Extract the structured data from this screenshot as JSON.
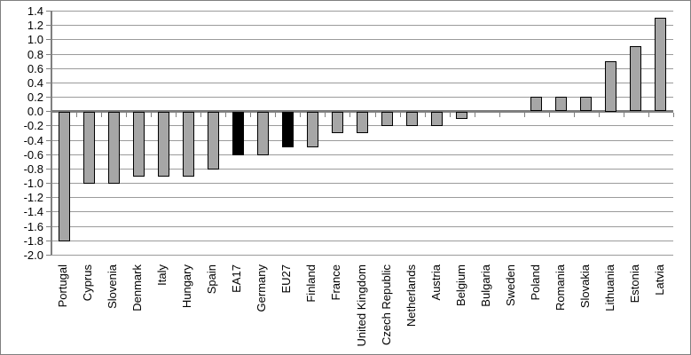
{
  "chart_data": {
    "type": "bar",
    "title": "",
    "xlabel": "",
    "ylabel": "",
    "legend": "none",
    "grid": "horizontal",
    "ylim": [
      -2.0,
      1.4
    ],
    "ytick_step": 0.2,
    "ytick_labels": [
      "1.4",
      "1.2",
      "1.0",
      "0.8",
      "0.6",
      "0.4",
      "0.2",
      "0.0",
      "-0.2",
      "-0.4",
      "-0.6",
      "-0.8",
      "-1.0",
      "-1.2",
      "-1.4",
      "-1.6",
      "-1.8",
      "-2.0"
    ],
    "categories": [
      "Portugal",
      "Cyprus",
      "Slovenia",
      "Denmark",
      "Italy",
      "Hungary",
      "Spain",
      "EA17",
      "Germany",
      "EU27",
      "Finland",
      "France",
      "United Kingdom",
      "Czech Republic",
      "Netherlands",
      "Austria",
      "Belgium",
      "Bulgaria",
      "Sweden",
      "Poland",
      "Romania",
      "Slovakia",
      "Lithuania",
      "Estonia",
      "Latvia"
    ],
    "values": [
      -1.8,
      -1.0,
      -1.0,
      -0.9,
      -0.9,
      -0.9,
      -0.8,
      -0.6,
      -0.6,
      -0.5,
      -0.5,
      -0.3,
      -0.3,
      -0.2,
      -0.2,
      -0.2,
      -0.1,
      0.0,
      0.0,
      0.2,
      0.2,
      0.2,
      0.7,
      0.9,
      1.3
    ],
    "highlighted_categories": [
      "EA17",
      "EU27"
    ],
    "colors": {
      "bar_fill": "#a6a6a6",
      "bar_border": "#000000",
      "highlight_fill": "#000000",
      "gridline": "#9b9b9b",
      "axis": "#7f7f7f",
      "text": "#000000",
      "background": "#ffffff",
      "outer_border": "#808080"
    }
  }
}
